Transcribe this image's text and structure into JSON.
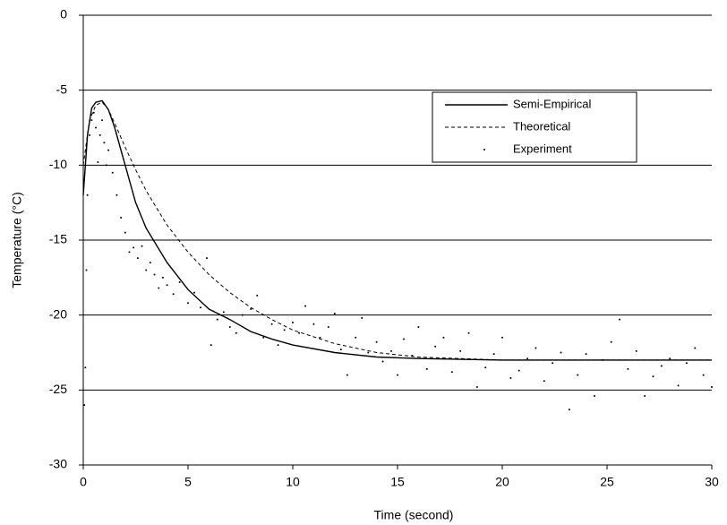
{
  "chart_data": {
    "type": "line",
    "x_label": "Time (second)",
    "y_label": "Temperature (°C)",
    "xlim": [
      0,
      30
    ],
    "xticks": [
      0,
      5,
      10,
      15,
      20,
      25,
      30
    ],
    "ylim": [
      -30,
      0
    ],
    "yticks": [
      -30,
      -25,
      -20,
      -15,
      -10,
      -5,
      0
    ],
    "grid": true,
    "legend": "upper-right",
    "series": [
      {
        "name": "Semi-Empirical",
        "color": "#000000",
        "style": "solid",
        "x": [
          0,
          0.2,
          0.4,
          0.6,
          0.9,
          1.2,
          1.5,
          2,
          2.5,
          3,
          4,
          5,
          6,
          7,
          8,
          9,
          10,
          12,
          14,
          16,
          20,
          25,
          30
        ],
        "values": [
          -12,
          -8,
          -6.2,
          -5.8,
          -5.7,
          -6.3,
          -7.5,
          -10,
          -12.5,
          -14.2,
          -16.5,
          -18.3,
          -19.6,
          -20.3,
          -21.1,
          -21.6,
          -22,
          -22.5,
          -22.8,
          -22.9,
          -23,
          -23,
          -23
        ]
      },
      {
        "name": "Theoretical",
        "color": "#000000",
        "style": "dashed",
        "x": [
          0,
          0.3,
          0.6,
          0.9,
          1.2,
          1.5,
          2,
          2.5,
          3,
          4,
          5,
          6,
          7,
          8,
          9,
          10,
          12,
          14,
          16,
          18,
          20,
          25,
          30
        ],
        "values": [
          -10,
          -7,
          -6,
          -5.8,
          -6.3,
          -7.2,
          -8.8,
          -10.3,
          -11.7,
          -14,
          -15.8,
          -17.3,
          -18.5,
          -19.5,
          -20.3,
          -21,
          -21.9,
          -22.5,
          -22.8,
          -22.9,
          -23,
          -23,
          -23
        ]
      },
      {
        "name": "Experiment",
        "color": "#000000",
        "style": "dots",
        "x": [
          0.05,
          0.1,
          0.15,
          0.2,
          0.3,
          0.4,
          0.5,
          0.6,
          0.7,
          0.8,
          0.9,
          1,
          1.1,
          1.2,
          1.4,
          1.6,
          1.8,
          2,
          2.2,
          2.4,
          2.6,
          2.8,
          3,
          3.2,
          3.4,
          3.6,
          3.8,
          4,
          4.3,
          4.6,
          5,
          5.3,
          5.6,
          5.9,
          6.1,
          6.4,
          6.7,
          7,
          7.3,
          7.6,
          8,
          8.3,
          8.6,
          9,
          9.3,
          9.6,
          10,
          10.3,
          10.6,
          11,
          11.3,
          11.7,
          12,
          12.3,
          12.6,
          13,
          13.3,
          13.6,
          14,
          14.3,
          14.7,
          15,
          15.3,
          15.7,
          16,
          16.4,
          16.8,
          17.2,
          17.6,
          18,
          18.4,
          18.8,
          19.2,
          19.6,
          20,
          20.4,
          20.8,
          21.2,
          21.6,
          22,
          22.4,
          22.8,
          23.2,
          23.6,
          24,
          24.4,
          24.8,
          25.2,
          25.6,
          26,
          26.4,
          26.8,
          27.2,
          27.6,
          28,
          28.4,
          28.8,
          29.2,
          29.6,
          30
        ],
        "values": [
          -26,
          -23.5,
          -17,
          -12,
          -8,
          -7,
          -6.5,
          -7.5,
          -9.8,
          -8,
          -7,
          -8.5,
          -10,
          -9,
          -10.5,
          -12,
          -13.5,
          -14.5,
          -15.8,
          -15.5,
          -16.2,
          -15.4,
          -17,
          -16.5,
          -17.3,
          -18.2,
          -17.5,
          -18,
          -18.6,
          -17.8,
          -19.2,
          -18.5,
          -19.5,
          -16.2,
          -22,
          -20.3,
          -19.8,
          -20.8,
          -21.2,
          -20,
          -19.6,
          -18.7,
          -21.5,
          -20.6,
          -22,
          -21,
          -20.5,
          -21.2,
          -19.4,
          -20.6,
          -21.5,
          -20.8,
          -19.9,
          -22.3,
          -24,
          -21.5,
          -20.2,
          -22.5,
          -21.8,
          -23.1,
          -22.4,
          -24,
          -21.6,
          -22.7,
          -20.8,
          -23.6,
          -22.1,
          -21.5,
          -23.8,
          -22.4,
          -21.2,
          -24.8,
          -23.5,
          -22.6,
          -21.5,
          -24.2,
          -23.7,
          -22.9,
          -22.2,
          -24.4,
          -23.2,
          -22.5,
          -26.3,
          -24,
          -22.6,
          -25.4,
          -23,
          -21.8,
          -20.3,
          -23.6,
          -22.4,
          -25.4,
          -24.1,
          -23.4,
          -22.9,
          -24.7,
          -23.2,
          -22.2,
          -24,
          -24.8
        ]
      }
    ]
  }
}
